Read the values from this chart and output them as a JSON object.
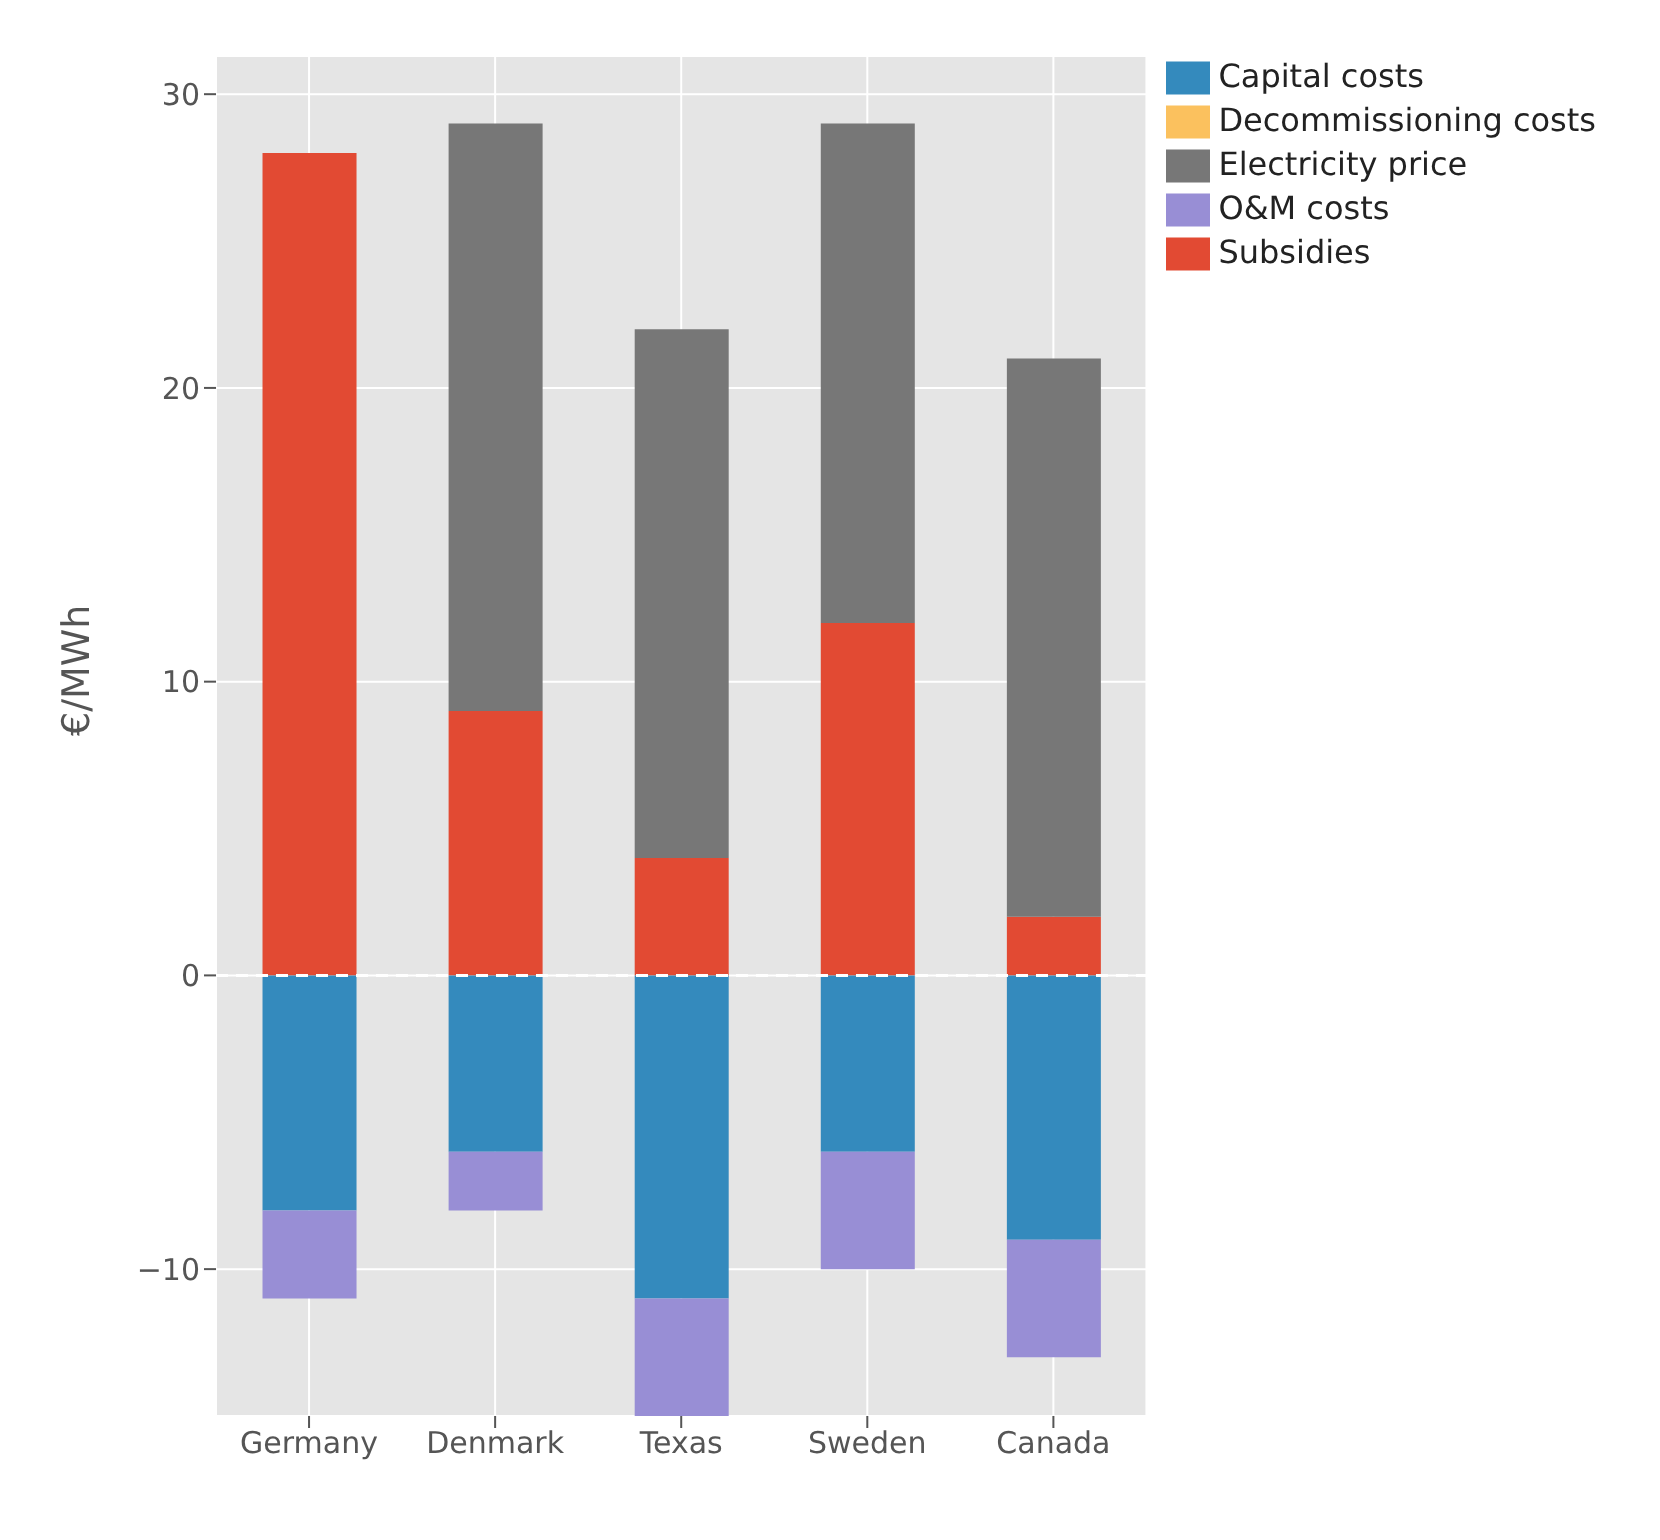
{
  "chart_data": {
    "type": "bar",
    "stacked": true,
    "ylabel": "€/MWh",
    "categories": [
      "Germany",
      "Denmark",
      "Texas",
      "Sweden",
      "Canada"
    ],
    "series": [
      {
        "name": "Subsidies",
        "color": "#e24a33",
        "values": [
          28,
          9,
          4,
          12,
          2
        ]
      },
      {
        "name": "Capital costs",
        "color": "#348abd",
        "values": [
          -8,
          -6,
          -11,
          -6,
          -9
        ]
      },
      {
        "name": "O&M costs",
        "color": "#988ed5",
        "values": [
          -3,
          -2,
          -4,
          -4,
          -4
        ]
      },
      {
        "name": "Electricity price",
        "color": "#777777",
        "values": [
          0,
          20,
          18,
          17,
          19
        ]
      },
      {
        "name": "Decommissioning costs",
        "color": "#fbc15e",
        "values": [
          0,
          0,
          0,
          0,
          0
        ]
      }
    ],
    "ylim": [
      -15,
      31.3
    ],
    "yticks": [
      {
        "value": -10,
        "label": "−10"
      },
      0,
      10,
      20,
      30
    ],
    "ref_lines": [
      {
        "axis": "y",
        "value": 0,
        "color": "#ffffff",
        "line_style": "dashed"
      }
    ],
    "grid": true,
    "legend": "right"
  }
}
